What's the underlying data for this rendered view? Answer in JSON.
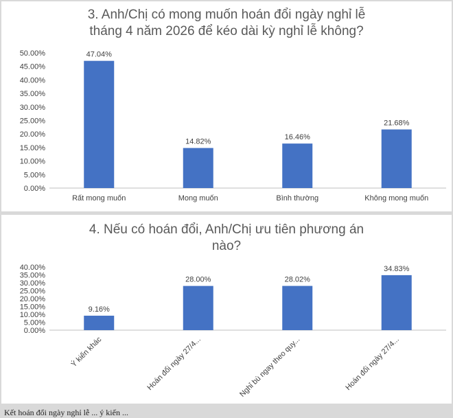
{
  "chart_data": [
    {
      "type": "bar",
      "title_line1": "3. Anh/Chị có mong muốn hoán đổi ngày nghỉ lễ",
      "title_line2": "tháng 4 năm 2026 để kéo dài kỳ nghỉ lễ không?",
      "categories": [
        "Rất mong muốn",
        "Mong muốn",
        "Bình thường",
        "Không mong muốn"
      ],
      "values": [
        47.04,
        14.82,
        16.46,
        21.68
      ],
      "value_labels": [
        "47.04%",
        "14.82%",
        "16.46%",
        "21.68%"
      ],
      "ylim": [
        0,
        50
      ],
      "yticks": [
        "0.00%",
        "5.00%",
        "10.00%",
        "15.00%",
        "20.00%",
        "25.00%",
        "30.00%",
        "35.00%",
        "40.00%",
        "45.00%",
        "50.00%"
      ],
      "color": "#4472c4",
      "grid": false,
      "legend": "none"
    },
    {
      "type": "bar",
      "title_line1": "4. Nếu có hoán đổi, Anh/Chị ưu tiên phương án",
      "title_line2": "nào?",
      "categories": [
        "Ý kiến khác",
        "Hoán đổi ngày 27/4...",
        "Nghỉ bù ngay theo quy...",
        "Hoán đổi ngày 27/4..."
      ],
      "values": [
        9.16,
        28.0,
        28.02,
        34.83
      ],
      "value_labels": [
        "9.16%",
        "28.00%",
        "28.02%",
        "34.83%"
      ],
      "ylim": [
        0,
        40
      ],
      "yticks": [
        "0.00%",
        "5.00%",
        "10.00%",
        "15.00%",
        "20.00%",
        "25.00%",
        "30.00%",
        "35.00%",
        "40.00%"
      ],
      "color": "#4472c4",
      "grid": false,
      "legend": "none"
    }
  ],
  "footer_text": "Kết hoán đổi ngày nghỉ lễ ... ý kiến ..."
}
